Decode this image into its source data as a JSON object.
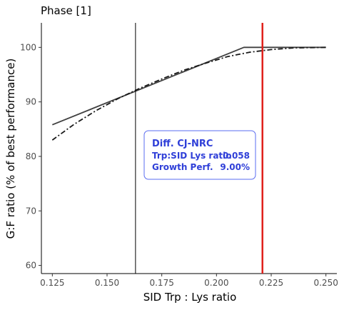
{
  "chart_data": {
    "type": "line",
    "title": "Phase [1]",
    "xlabel": "SID Trp : Lys ratio",
    "ylabel": "G:F ratio (% of best performance)",
    "xlim": [
      0.12,
      0.255
    ],
    "ylim": [
      58.5,
      104.5
    ],
    "x_ticks": [
      0.125,
      0.15,
      0.175,
      0.2,
      0.225,
      0.25
    ],
    "x_tick_labels": [
      "0.125",
      "0.150",
      "0.175",
      "0.200",
      "0.225",
      "0.250"
    ],
    "y_ticks": [
      60,
      70,
      80,
      90,
      100
    ],
    "y_tick_labels": [
      "60",
      "70",
      "80",
      "90",
      "100"
    ],
    "grid": false,
    "series": [
      {
        "style": "solid",
        "color": "#404040",
        "x": [
          0.125,
          0.2125,
          0.25
        ],
        "y": [
          85.8,
          100.0,
          100.0
        ]
      },
      {
        "style": "dashdot",
        "color": "#1a1a1a",
        "x": [
          0.125,
          0.135,
          0.145,
          0.155,
          0.165,
          0.175,
          0.185,
          0.195,
          0.205,
          0.215,
          0.225,
          0.235,
          0.25
        ],
        "y": [
          83.0,
          85.9,
          88.4,
          90.6,
          92.5,
          94.2,
          95.8,
          97.1,
          98.3,
          99.1,
          99.6,
          99.9,
          100.0
        ]
      }
    ],
    "vlines": [
      {
        "x": 0.163,
        "color": "#000000",
        "width": 1
      },
      {
        "x": 0.221,
        "color": "#e0201b",
        "width": 2.5
      }
    ],
    "annotation": {
      "title": "Diff. CJ-NRC",
      "rows": [
        {
          "label": "Trp:SID Lys ratio",
          "value": "0.058"
        },
        {
          "label": "Growth Perf.",
          "value": "9.00%"
        }
      ],
      "text_color": "#2f3fd8",
      "border_color": "#5a6cf0"
    }
  }
}
